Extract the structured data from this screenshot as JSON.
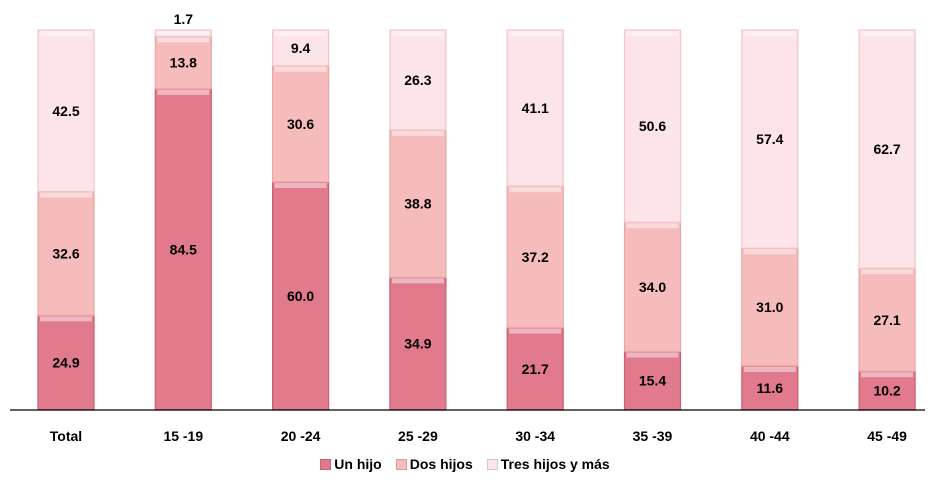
{
  "chart_data": {
    "type": "bar",
    "stacked": true,
    "categories": [
      "Total",
      "15 -19",
      "20 -24",
      "25 -29",
      "30 -34",
      "35 -39",
      "40 -44",
      "45 -49"
    ],
    "series": [
      {
        "name": "Un hijo",
        "values": [
          24.9,
          84.5,
          60.0,
          34.9,
          21.7,
          15.4,
          11.6,
          10.2
        ],
        "color": "#e07a8c"
      },
      {
        "name": "Dos hijos",
        "values": [
          32.6,
          13.8,
          30.6,
          38.8,
          37.2,
          34.0,
          31.0,
          27.1
        ],
        "color": "#f6bcbc"
      },
      {
        "name": "Tres hijos y más",
        "values": [
          42.5,
          1.7,
          9.4,
          26.3,
          41.1,
          50.6,
          57.4,
          62.7
        ],
        "color": "#fde4e8"
      }
    ],
    "labels": [
      [
        "24.9",
        "84.5",
        "60.0",
        "34.9",
        "21.7",
        "15.4",
        "11.6",
        "10.2"
      ],
      [
        "32.6",
        "13.8",
        "30.6",
        "38.8",
        "37.2",
        "34.0",
        "31.0",
        "27.1"
      ],
      [
        "42.5",
        "1.7",
        "9.4",
        "26.3",
        "41.1",
        "50.6",
        "57.4",
        "62.7"
      ]
    ],
    "ylim": [
      0,
      100
    ],
    "grid": false,
    "legend_position": "bottom"
  }
}
